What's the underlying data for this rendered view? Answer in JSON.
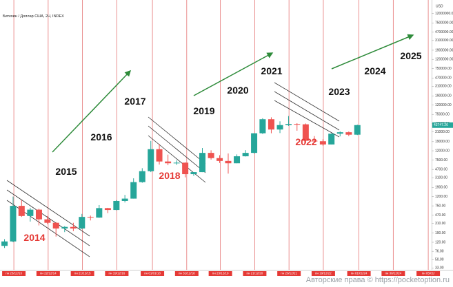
{
  "chart_data": {
    "type": "candlestick",
    "title": "Биткоин / Доллар США, 2Н, INDEX",
    "y_axis_label": "USD",
    "log_scale": true,
    "up_color": "#26a69a",
    "down_color": "#ef5350",
    "x": [
      "2013-09-15",
      "2013-12-15",
      "2014-03-15",
      "2014-06-15",
      "2014-09-15",
      "2014-12-15",
      "2015-03-15",
      "2015-06-15",
      "2015-09-15",
      "2015-12-15",
      "2016-03-15",
      "2016-06-15",
      "2016-09-15",
      "2016-12-15",
      "2017-03-15",
      "2017-06-15",
      "2017-09-15",
      "2017-12-15",
      "2018-03-15",
      "2018-06-15",
      "2018-09-15",
      "2018-12-15",
      "2019-03-15",
      "2019-06-15",
      "2019-09-15",
      "2019-12-15",
      "2020-03-15",
      "2020-06-15",
      "2020-09-15",
      "2020-12-15",
      "2021-03-15",
      "2021-06-15",
      "2021-09-15",
      "2021-12-15",
      "2022-03-15",
      "2022-06-15",
      "2022-09-15",
      "2022-12-15",
      "2023-03-15",
      "2023-06-15",
      "2023-09-15",
      "2023-12-15"
    ],
    "open": [
      100,
      125,
      750,
      450,
      620,
      380,
      320,
      240,
      260,
      240,
      430,
      415,
      670,
      610,
      960,
      1080,
      2480,
      4300,
      13000,
      7000,
      6400,
      6600,
      3700,
      4100,
      10800,
      8300,
      7200,
      6400,
      9100,
      10800,
      29000,
      58800,
      35000,
      43800,
      46200,
      45500,
      19900,
      19400,
      16500,
      28400,
      30500,
      27000
    ],
    "high": [
      140,
      1200,
      1000,
      680,
      650,
      450,
      330,
      270,
      320,
      500,
      460,
      780,
      680,
      1000,
      1300,
      3000,
      5000,
      19700,
      17000,
      9900,
      7400,
      6700,
      4100,
      13800,
      12300,
      9600,
      10500,
      10000,
      12400,
      29000,
      61800,
      64800,
      52900,
      69000,
      48200,
      47500,
      25200,
      21500,
      28900,
      31800,
      31800,
      44700
    ],
    "low": [
      90,
      120,
      430,
      340,
      280,
      300,
      160,
      200,
      210,
      230,
      360,
      410,
      520,
      600,
      890,
      1080,
      2400,
      4100,
      6000,
      5800,
      5900,
      3150,
      3400,
      4100,
      7700,
      6500,
      3800,
      6400,
      9000,
      10500,
      28000,
      29000,
      29300,
      42000,
      33000,
      17600,
      18200,
      15500,
      16500,
      24800,
      25000,
      26500
    ],
    "close": [
      125,
      750,
      450,
      620,
      380,
      320,
      240,
      260,
      240,
      430,
      415,
      670,
      610,
      960,
      1080,
      2480,
      4300,
      13000,
      7000,
      6400,
      6600,
      3700,
      4100,
      10800,
      8300,
      7200,
      6400,
      9100,
      10800,
      29000,
      58800,
      35000,
      43800,
      46200,
      45500,
      19900,
      19400,
      16500,
      28400,
      30500,
      27000,
      43747.26
    ],
    "xlim": [
      "2013-07-29",
      "2026-02-10"
    ],
    "xticks": [
      {
        "value": "2013-12-23",
        "label": "пн 23/12/13"
      },
      {
        "value": "2014-12-22",
        "label": "пн 22/12/14"
      },
      {
        "value": "2015-12-21",
        "label": "пн 21/12/15"
      },
      {
        "value": "2016-12-19",
        "label": "пн 19/12/16"
      },
      {
        "value": "2018-01-01",
        "label": "пн 01/01/18"
      },
      {
        "value": "2018-12-31",
        "label": "пн 31/12/18"
      },
      {
        "value": "2019-12-23",
        "label": "пн 23/12/19"
      },
      {
        "value": "2020-12-21",
        "label": "пн 21/12/20"
      },
      {
        "value": "2021-12-20",
        "label": "пн 20/12/21"
      },
      {
        "value": "2022-12-19",
        "label": "пн 19/12/22"
      },
      {
        "value": "2024-01-01",
        "label": "пн 01/01/24"
      },
      {
        "value": "2024-12-30",
        "label": "пн 30/12/24"
      },
      {
        "value": "2026-01-05",
        "label": "пн 05/01/"
      }
    ],
    "ylim": [
      30,
      20000000
    ],
    "yticks": [
      {
        "value": 12000000,
        "label": "12000000.00"
      },
      {
        "value": 7500000,
        "label": "7500000.00"
      },
      {
        "value": 4700000,
        "label": "4700000.00"
      },
      {
        "value": 3100000,
        "label": "3100000.00"
      },
      {
        "value": 1900000,
        "label": "1900000.00"
      },
      {
        "value": 1200000,
        "label": "1200000.00"
      },
      {
        "value": 750000,
        "label": "750000.00"
      },
      {
        "value": 470000,
        "label": "470000.00"
      },
      {
        "value": 310000,
        "label": "310000.00"
      },
      {
        "value": 190000,
        "label": "190000.00"
      },
      {
        "value": 120000,
        "label": "120000.00"
      },
      {
        "value": 75000,
        "label": "75000.00"
      },
      {
        "value": 47000,
        "label": "47000.00"
      },
      {
        "value": 31000,
        "label": "31000.00"
      },
      {
        "value": 19000,
        "label": "19000.00"
      },
      {
        "value": 12000,
        "label": "12000.00"
      },
      {
        "value": 7500,
        "label": "7500.00"
      },
      {
        "value": 4700,
        "label": "4700.00"
      },
      {
        "value": 3100,
        "label": "3100.00"
      },
      {
        "value": 1900,
        "label": "1900.00"
      },
      {
        "value": 1200,
        "label": "1200.00"
      },
      {
        "value": 750,
        "label": "750.00"
      },
      {
        "value": 470,
        "label": "470.00"
      },
      {
        "value": 310,
        "label": "310.00"
      },
      {
        "value": 190,
        "label": "190.00"
      },
      {
        "value": 120,
        "label": "120.00"
      },
      {
        "value": 76,
        "label": "76.00"
      },
      {
        "value": 50,
        "label": "50.00"
      },
      {
        "value": 33,
        "label": "33.00"
      }
    ],
    "annotations": [
      {
        "text": "2014",
        "color": "#e53935"
      },
      {
        "text": "2015",
        "color": "#111111"
      },
      {
        "text": "2016",
        "color": "#111111"
      },
      {
        "text": "2017",
        "color": "#111111"
      },
      {
        "text": "2018",
        "color": "#e53935"
      },
      {
        "text": "2019",
        "color": "#111111"
      },
      {
        "text": "2020",
        "color": "#111111"
      },
      {
        "text": "2021",
        "color": "#111111"
      },
      {
        "text": "2022",
        "color": "#e53935"
      },
      {
        "text": "2023",
        "color": "#111111"
      },
      {
        "text": "2024",
        "color": "#111111"
      },
      {
        "text": "2025",
        "color": "#111111"
      }
    ],
    "watermark": "Авторские права © https://pocketoption.ru"
  }
}
